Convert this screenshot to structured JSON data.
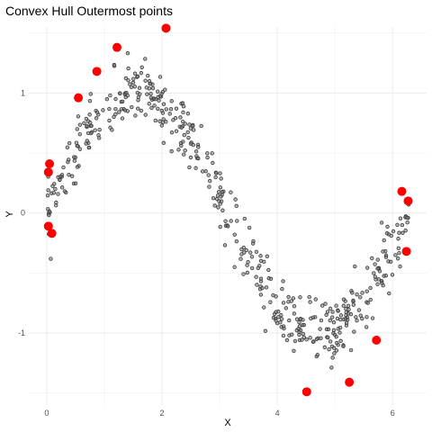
{
  "chart_data": {
    "type": "scatter",
    "title": "Convex Hull Outermost points",
    "xlabel": "X",
    "ylabel": "Y",
    "xlim": [
      -0.31,
      6.59
    ],
    "ylim": [
      -1.6,
      1.55
    ],
    "x_ticks": [
      0,
      2,
      4,
      6
    ],
    "x_tick_labels": [
      "0",
      "2",
      "4",
      "6"
    ],
    "y_ticks": [
      -1,
      0,
      1
    ],
    "y_tick_labels": [
      "-1",
      "0",
      "1"
    ],
    "grid": true,
    "colors": {
      "hull_points": "#ff0000",
      "data_points": "#3a3a3a",
      "grid": "#ebebeb"
    },
    "series": [
      {
        "role": "data",
        "model": "y ≈ sin(x) + noise, n ≈ 500, x in [0, 2π]",
        "points": []
      },
      {
        "role": "hull",
        "points": [
          {
            "x": 0.05,
            "y": 0.41
          },
          {
            "x": 0.03,
            "y": 0.34
          },
          {
            "x": 0.03,
            "y": -0.11
          },
          {
            "x": 0.09,
            "y": -0.17
          },
          {
            "x": 0.55,
            "y": 0.96
          },
          {
            "x": 0.87,
            "y": 1.18
          },
          {
            "x": 1.22,
            "y": 1.38
          },
          {
            "x": 2.07,
            "y": 1.54
          },
          {
            "x": 4.51,
            "y": -1.49
          },
          {
            "x": 5.25,
            "y": -1.41
          },
          {
            "x": 5.72,
            "y": -1.06
          },
          {
            "x": 6.16,
            "y": 0.18
          },
          {
            "x": 6.27,
            "y": 0.1
          },
          {
            "x": 6.24,
            "y": -0.32
          }
        ]
      }
    ]
  }
}
